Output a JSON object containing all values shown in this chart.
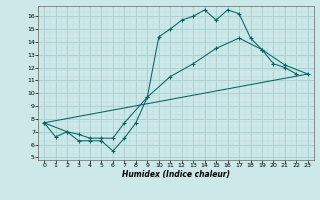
{
  "title": "",
  "xlabel": "Humidex (Indice chaleur)",
  "xlim": [
    -0.5,
    23.5
  ],
  "ylim": [
    4.8,
    16.8
  ],
  "bg_color": "#cce8e8",
  "grid_color_major": "#aacccc",
  "grid_color_minor": "#bbdddd",
  "line_color": "#006666",
  "line1_x": [
    0,
    1,
    2,
    3,
    4,
    5,
    6,
    7,
    8,
    9,
    10,
    11,
    12,
    13,
    14,
    15,
    16,
    17,
    18,
    19,
    20,
    21,
    22
  ],
  "line1_y": [
    7.7,
    6.6,
    7.0,
    6.3,
    6.3,
    6.3,
    5.5,
    6.5,
    7.7,
    9.7,
    14.4,
    15.0,
    15.7,
    16.0,
    16.5,
    15.7,
    16.5,
    16.2,
    14.3,
    13.4,
    12.3,
    12.0,
    11.5
  ],
  "line2_x": [
    0,
    2,
    3,
    4,
    5,
    6,
    7,
    9,
    11,
    13,
    15,
    17,
    19,
    21,
    23
  ],
  "line2_y": [
    7.7,
    7.0,
    6.8,
    6.5,
    6.5,
    6.5,
    7.7,
    9.7,
    11.3,
    12.3,
    13.5,
    14.3,
    13.4,
    12.2,
    11.5
  ],
  "line3_x": [
    0,
    23
  ],
  "line3_y": [
    7.7,
    11.5
  ],
  "xticks": [
    0,
    1,
    2,
    3,
    4,
    5,
    6,
    7,
    8,
    9,
    10,
    11,
    12,
    13,
    14,
    15,
    16,
    17,
    18,
    19,
    20,
    21,
    22,
    23
  ],
  "yticks": [
    5,
    6,
    7,
    8,
    9,
    10,
    11,
    12,
    13,
    14,
    15,
    16
  ]
}
